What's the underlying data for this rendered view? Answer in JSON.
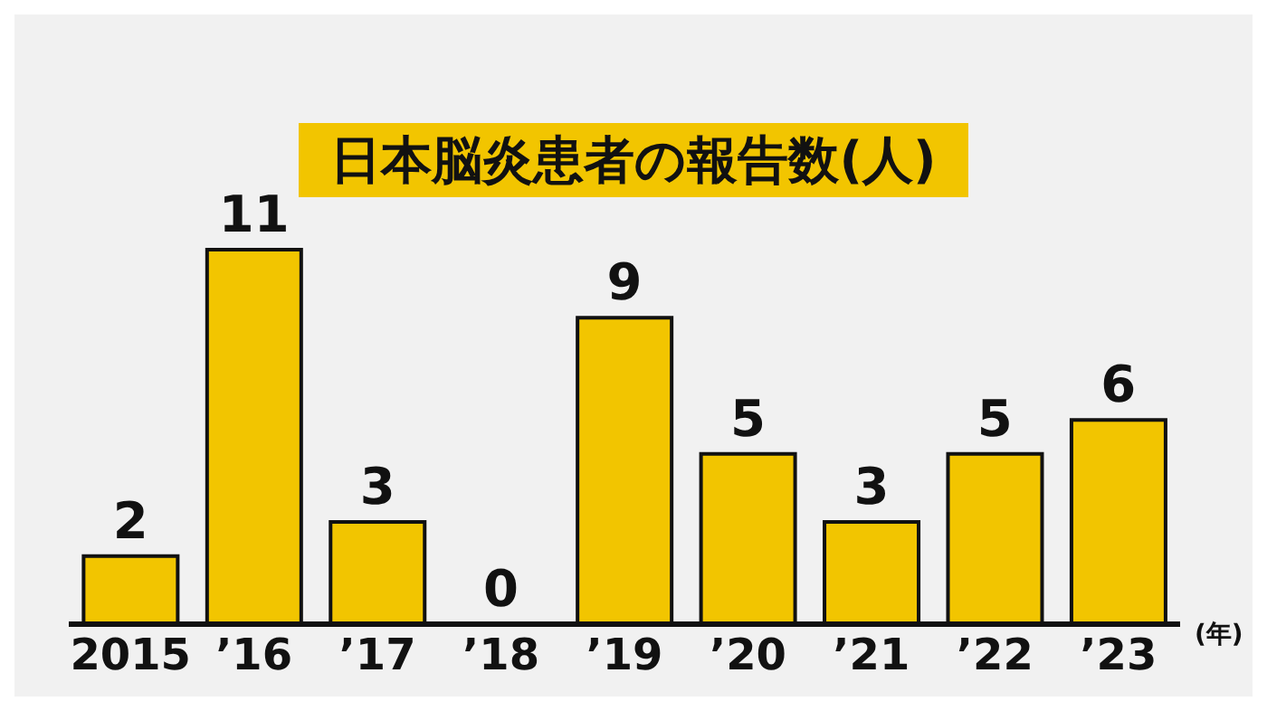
{
  "chart_data": {
    "type": "bar",
    "title": "日本脳炎患者の報告数(人)",
    "xlabel": "(年)",
    "categories": [
      "2015",
      "’16",
      "’17",
      "’18",
      "’19",
      "’20",
      "’21",
      "’22",
      "’23"
    ],
    "values": [
      2,
      11,
      3,
      0,
      9,
      5,
      3,
      5,
      6
    ],
    "color": "#f2c500",
    "data_labels": true,
    "grid": false,
    "legend": false
  }
}
